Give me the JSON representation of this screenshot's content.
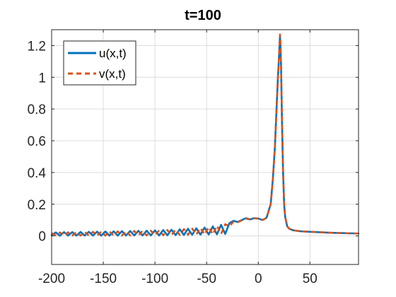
{
  "chart_data": {
    "type": "line",
    "title": "t=100",
    "xlabel": "",
    "ylabel": "",
    "xlim": [
      -200,
      97
    ],
    "ylim": [
      -0.18,
      1.3
    ],
    "xticks": [
      -200,
      -150,
      -100,
      -50,
      0,
      50
    ],
    "xtick_labels": [
      "-200",
      "-150",
      "-100",
      "-50",
      "0",
      "50"
    ],
    "yticks": [
      0,
      0.2,
      0.4,
      0.6,
      0.8,
      1.0,
      1.2
    ],
    "ytick_labels": [
      "0",
      "0.2",
      "0.4",
      "0.6",
      "0.8",
      "1",
      "1.2"
    ],
    "grid": true,
    "legend_position": "top-left",
    "series": [
      {
        "name": "u(x,t)",
        "color": "#0072BD",
        "style": "solid",
        "x": [
          -200,
          -196,
          -192,
          -188,
          -184,
          -180,
          -176,
          -172,
          -168,
          -164,
          -160,
          -156,
          -152,
          -148,
          -144,
          -140,
          -136,
          -132,
          -128,
          -124,
          -120,
          -116,
          -112,
          -108,
          -104,
          -100,
          -96,
          -92,
          -88,
          -84,
          -80,
          -76,
          -72,
          -68,
          -64,
          -60,
          -56,
          -52,
          -48,
          -44,
          -40,
          -36,
          -32,
          -28,
          -24,
          -20,
          -16,
          -12,
          -8,
          -4,
          0,
          4,
          8,
          12,
          14,
          16,
          17,
          18,
          19,
          20,
          20.5,
          21,
          21.5,
          22,
          22.5,
          23,
          24,
          25,
          26,
          28,
          30,
          34,
          40,
          50,
          60,
          70,
          80,
          97
        ],
        "y": [
          0.005,
          0.022,
          0.001,
          0.024,
          0.002,
          0.024,
          0.002,
          0.025,
          0.002,
          0.026,
          0.002,
          0.027,
          0.002,
          0.028,
          0.002,
          0.029,
          0.002,
          0.03,
          0.003,
          0.031,
          0.003,
          0.032,
          0.003,
          0.033,
          0.003,
          0.035,
          0.003,
          0.037,
          0.004,
          0.039,
          0.005,
          0.042,
          0.006,
          0.045,
          0.007,
          0.048,
          0.008,
          0.053,
          0.009,
          0.06,
          0.01,
          0.07,
          0.012,
          0.08,
          0.095,
          0.088,
          0.1,
          0.112,
          0.104,
          0.112,
          0.11,
          0.1,
          0.115,
          0.2,
          0.35,
          0.55,
          0.7,
          0.85,
          1.0,
          1.12,
          1.2,
          1.26,
          1.2,
          1.08,
          0.9,
          0.7,
          0.4,
          0.2,
          0.12,
          0.06,
          0.045,
          0.035,
          0.03,
          0.026,
          0.023,
          0.02,
          0.018,
          0.015
        ]
      },
      {
        "name": "v(x,t)",
        "color": "#D95319",
        "style": "dashed",
        "x": [
          -200,
          -196,
          -192,
          -188,
          -184,
          -180,
          -176,
          -172,
          -168,
          -164,
          -160,
          -156,
          -152,
          -148,
          -144,
          -140,
          -136,
          -132,
          -128,
          -124,
          -120,
          -116,
          -112,
          -108,
          -104,
          -100,
          -96,
          -92,
          -88,
          -84,
          -80,
          -76,
          -72,
          -68,
          -64,
          -60,
          -56,
          -52,
          -48,
          -44,
          -40,
          -36,
          -32,
          -28,
          -24,
          -20,
          -16,
          -12,
          -8,
          -4,
          0,
          4,
          8,
          12,
          14,
          16,
          17,
          18,
          19,
          20,
          20.5,
          21,
          21.5,
          22,
          22.5,
          23,
          24,
          25,
          26,
          28,
          30,
          34,
          40,
          50,
          60,
          70,
          80,
          97
        ],
        "y": [
          0.018,
          0.003,
          0.022,
          0.002,
          0.023,
          0.002,
          0.024,
          0.002,
          0.025,
          0.002,
          0.026,
          0.002,
          0.027,
          0.002,
          0.028,
          0.002,
          0.029,
          0.002,
          0.03,
          0.003,
          0.031,
          0.003,
          0.032,
          0.003,
          0.033,
          0.004,
          0.035,
          0.004,
          0.037,
          0.005,
          0.04,
          0.006,
          0.043,
          0.007,
          0.046,
          0.008,
          0.05,
          0.009,
          0.056,
          0.01,
          0.064,
          0.012,
          0.074,
          0.06,
          0.09,
          0.086,
          0.098,
          0.11,
          0.103,
          0.111,
          0.109,
          0.1,
          0.114,
          0.2,
          0.35,
          0.55,
          0.7,
          0.85,
          1.0,
          1.12,
          1.2,
          1.27,
          1.21,
          1.08,
          0.9,
          0.7,
          0.4,
          0.2,
          0.12,
          0.06,
          0.045,
          0.035,
          0.03,
          0.026,
          0.023,
          0.02,
          0.018,
          0.015
        ]
      }
    ]
  }
}
